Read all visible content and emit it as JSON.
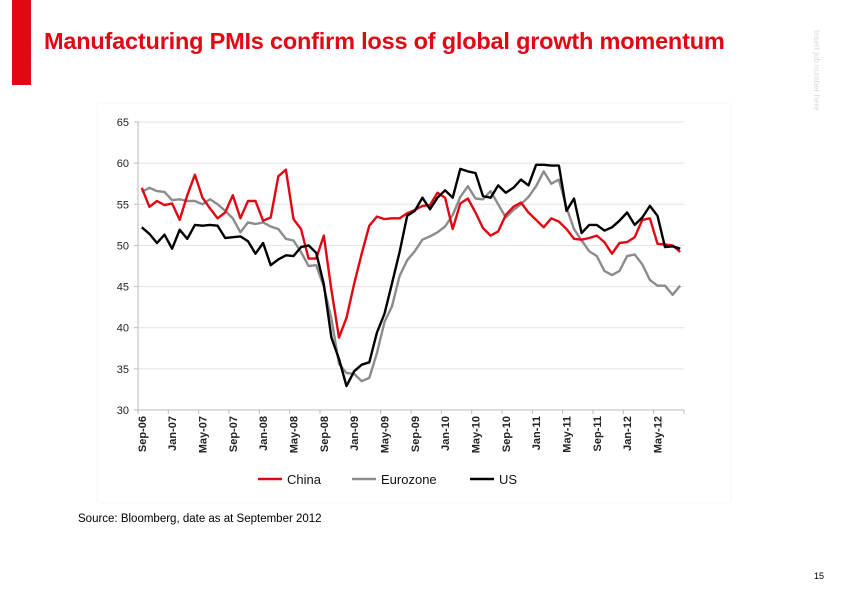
{
  "slide": {
    "title": "Manufacturing PMIs confirm loss of global growth momentum",
    "job_number": "Insert job number here",
    "source": "Source: Bloomberg, date as at September 2012",
    "page_number": "15",
    "accent_color": "#e30613"
  },
  "chart_data": {
    "type": "line",
    "title": "",
    "xlabel": "",
    "ylabel": "",
    "ylim": [
      30,
      65
    ],
    "yticks": [
      "30",
      "35",
      "40",
      "45",
      "50",
      "55",
      "60",
      "65"
    ],
    "xticks": [
      "Sep-06",
      "Jan-07",
      "May-07",
      "Sep-07",
      "Jan-08",
      "May-08",
      "Sep-08",
      "Jan-09",
      "May-09",
      "Sep-09",
      "Jan-10",
      "May-10",
      "Sep-10",
      "Jan-11",
      "May-11",
      "Sep-11",
      "Jan-12",
      "May-12"
    ],
    "x_range": [
      "Sep-06",
      "Aug-12"
    ],
    "frequency": "monthly",
    "grid": true,
    "legend_placement": "bottom",
    "series": [
      {
        "name": "China",
        "color": "#e30613",
        "values": [
          57.0,
          54.7,
          55.4,
          54.9,
          55.1,
          53.1,
          56.1,
          58.6,
          55.8,
          54.5,
          53.3,
          54.0,
          56.1,
          53.3,
          55.4,
          55.4,
          53.0,
          53.4,
          58.4,
          59.2,
          53.2,
          52.0,
          48.4,
          48.4,
          51.2,
          44.6,
          38.8,
          41.2,
          45.3,
          49.0,
          52.4,
          53.5,
          53.2,
          53.3,
          53.3,
          53.9,
          54.3,
          54.8,
          54.9,
          56.4,
          55.8,
          52.0,
          55.1,
          55.7,
          54.0,
          52.1,
          51.2,
          51.7,
          53.7,
          54.7,
          55.2,
          54.0,
          53.1,
          52.2,
          53.3,
          52.9,
          52.0,
          50.8,
          50.7,
          50.9,
          51.2,
          50.4,
          49.0,
          50.3,
          50.4,
          51.0,
          53.1,
          53.3,
          50.2,
          50.1,
          50.0,
          49.2
        ]
      },
      {
        "name": "Eurozone",
        "color": "#8c8c8c",
        "values": [
          56.5,
          57.0,
          56.6,
          56.5,
          55.5,
          55.6,
          55.4,
          55.4,
          55.0,
          55.6,
          55.0,
          54.2,
          53.3,
          51.6,
          52.8,
          52.6,
          52.8,
          52.3,
          52.0,
          50.8,
          50.6,
          49.2,
          47.5,
          47.6,
          45.0,
          41.1,
          35.6,
          34.5,
          34.4,
          33.5,
          33.9,
          36.9,
          40.7,
          42.6,
          46.3,
          48.2,
          49.3,
          50.7,
          51.1,
          51.6,
          52.3,
          53.7,
          55.9,
          57.2,
          55.7,
          55.6,
          56.6,
          55.0,
          53.4,
          54.3,
          55.0,
          55.9,
          57.2,
          59.0,
          57.5,
          58.0,
          54.6,
          52.0,
          50.6,
          49.3,
          48.7,
          46.9,
          46.4,
          46.9,
          48.7,
          48.9,
          47.7,
          45.8,
          45.1,
          45.1,
          44.0,
          45.1
        ]
      },
      {
        "name": "US",
        "color": "#000000",
        "values": [
          52.2,
          51.4,
          50.3,
          51.3,
          49.6,
          51.9,
          50.8,
          52.5,
          52.4,
          52.5,
          52.4,
          50.9,
          51.0,
          51.1,
          50.5,
          49.0,
          50.3,
          47.6,
          48.3,
          48.8,
          48.7,
          49.8,
          50.0,
          49.1,
          45.3,
          38.8,
          36.2,
          32.9,
          34.7,
          35.5,
          35.8,
          39.4,
          41.7,
          45.4,
          49.2,
          53.6,
          54.2,
          55.8,
          54.4,
          55.8,
          56.7,
          55.8,
          59.3,
          59.0,
          58.8,
          56.0,
          55.8,
          57.3,
          56.4,
          57.0,
          58.0,
          57.3,
          59.8,
          59.8,
          59.7,
          59.7,
          54.2,
          55.7,
          51.5,
          52.5,
          52.5,
          51.8,
          52.2,
          53.0,
          54.0,
          52.5,
          53.4,
          54.8,
          53.6,
          49.8,
          49.9,
          49.6
        ]
      }
    ]
  }
}
